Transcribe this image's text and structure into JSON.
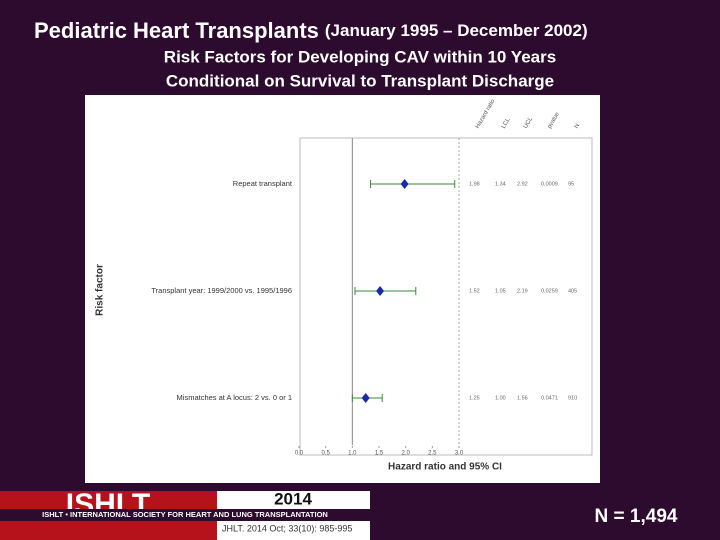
{
  "header": {
    "title": "Pediatric Heart Transplants",
    "title_note": "(January 1995 – December 2002)",
    "subtitle_lines": [
      "Risk Factors for Developing CAV within 10 Years",
      "Conditional on Survival to Transplant Discharge"
    ]
  },
  "chart_data": {
    "type": "forest",
    "categories": [
      "Repeat transplant",
      "Transplant year: 1999/2000 vs. 1995/1996",
      "Mismatches at A locus: 2 vs. 0 or 1"
    ],
    "series": [
      {
        "name": "Hazard ratio",
        "color": "#1a2aa8",
        "values": [
          1.98,
          1.52,
          1.25
        ]
      },
      {
        "name": "LCL",
        "color": "#3a8a3a",
        "values": [
          1.34,
          1.05,
          1.0
        ],
        "value_labels": [
          "1.34",
          "1.05",
          "1.00"
        ]
      },
      {
        "name": "UCL",
        "color": "#3a8a3a",
        "values": [
          2.92,
          2.19,
          1.56
        ]
      },
      {
        "name": "pvalue",
        "values": [
          0.0009,
          0.0259,
          0.0471
        ]
      },
      {
        "name": "N",
        "values": [
          95,
          405,
          910
        ]
      }
    ],
    "reference": 1,
    "xlim": [
      0,
      3
    ],
    "xticks": [
      {
        "value": 0,
        "label": "0.0"
      },
      {
        "value": 0.5,
        "label": "0.5"
      },
      {
        "value": 1,
        "label": "1.0"
      },
      {
        "value": 1.5,
        "label": "1.5"
      },
      {
        "value": 2,
        "label": "2.0"
      },
      {
        "value": 2.5,
        "label": "2.5"
      },
      {
        "value": 3,
        "label": "3.0"
      }
    ],
    "xlabel": "Hazard ratio and 95% CI",
    "ylabel": "Risk factor"
  },
  "footer": {
    "logo": "ISHLT",
    "logo_line": "ISHLT • INTERNATIONAL SOCIETY FOR HEART AND LUNG TRANSPLANTATION",
    "year": "2014",
    "citation": "JHLT. 2014 Oct; 33(10): 985-995",
    "total": "N = 1,494"
  }
}
